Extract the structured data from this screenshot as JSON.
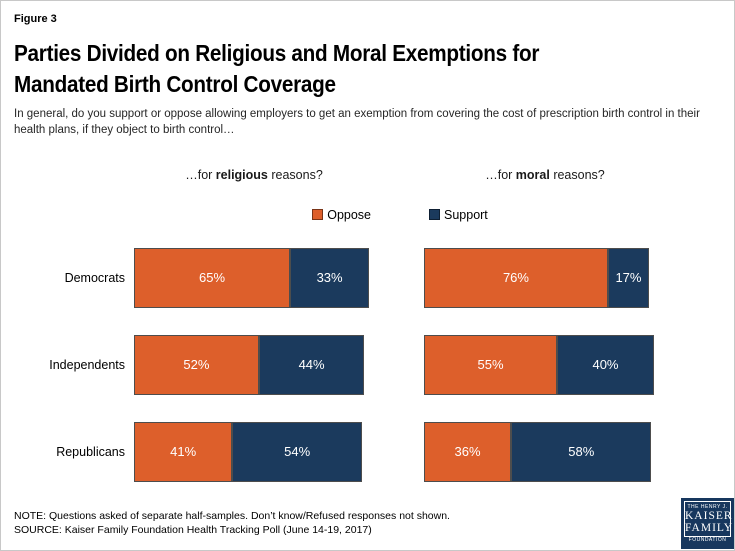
{
  "header": {
    "figure_label": "Figure 3",
    "title_line1": "Parties Divided on Religious and Moral Exemptions for",
    "title_line2": "Mandated Birth Control Coverage",
    "subtitle": "In general, do you support or oppose allowing employers to get an exemption from covering the cost of prescription birth control in their health plans, if they object to birth control…"
  },
  "panels": [
    {
      "prefix": "…for ",
      "bold": "religious",
      "suffix": " reasons?"
    },
    {
      "prefix": "…for ",
      "bold": "moral",
      "suffix": " reasons?"
    }
  ],
  "legend": [
    {
      "label": "Oppose",
      "color": "#DD5F2B"
    },
    {
      "label": "Support",
      "color": "#1B3A5D"
    }
  ],
  "chart_data": {
    "type": "bar",
    "subtype": "horizontal-stacked",
    "categories": [
      "Democrats",
      "Independents",
      "Republicans"
    ],
    "panels": [
      {
        "title": "…for religious reasons?",
        "series": [
          {
            "name": "Oppose",
            "values": [
              65,
              52,
              41
            ]
          },
          {
            "name": "Support",
            "values": [
              33,
              44,
              54
            ]
          }
        ]
      },
      {
        "title": "…for moral reasons?",
        "series": [
          {
            "name": "Oppose",
            "values": [
              76,
              55,
              36
            ]
          },
          {
            "name": "Support",
            "values": [
              17,
              40,
              58
            ]
          }
        ]
      }
    ],
    "colors": {
      "Oppose": "#DD5F2B",
      "Support": "#1B3A5D"
    },
    "value_format": "percent",
    "xlim": [
      0,
      100
    ],
    "grid": false,
    "legend_position": "top-center",
    "value_labels": "inside-white"
  },
  "footer": {
    "note": "NOTE: Questions asked of separate half-samples. Don’t know/Refused responses not shown.",
    "source": "SOURCE: Kaiser Family Foundation Health Tracking Poll (June 14-19, 2017)"
  },
  "logo": {
    "line1": "THE HENRY J.",
    "line2": "KAISER",
    "line3": "FAMILY",
    "line4": "FOUNDATION",
    "color": "#17375E"
  }
}
